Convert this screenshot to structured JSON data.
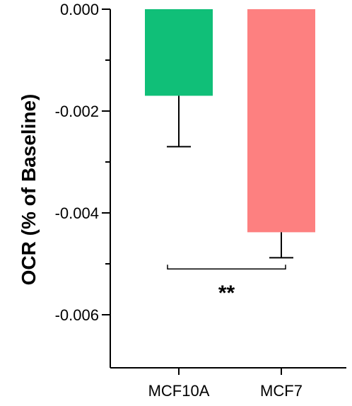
{
  "chart_data": {
    "type": "bar",
    "ylabel": "OCR (% of Baseline)",
    "categories": [
      "MCF10A",
      "MCF7"
    ],
    "values": [
      -0.0017,
      -0.00438
    ],
    "error": [
      0.001,
      0.0005
    ],
    "colors": [
      "#10bf78",
      "#fd8080"
    ],
    "ylim": [
      -0.007,
      0.0
    ],
    "yticks": [
      0.0,
      -0.002,
      -0.004,
      -0.006
    ],
    "ytick_labels": [
      "0.000",
      "-0.002",
      "-0.004",
      "-0.006"
    ],
    "minor_yticks": [
      -0.001,
      -0.003,
      -0.005
    ],
    "significance": {
      "label": "**",
      "pair": [
        "MCF10A",
        "MCF7"
      ],
      "y": -0.0051
    }
  }
}
